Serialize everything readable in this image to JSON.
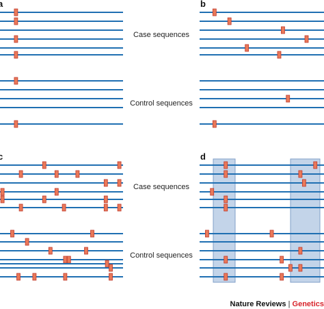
{
  "panels": [
    {
      "label": "a",
      "case_label": "Case sequences",
      "control_label": "Control sequences",
      "case": [
        [
          0.13
        ],
        [
          0.13
        ],
        [],
        [
          0.13
        ],
        [],
        [
          0.13
        ]
      ],
      "control": [
        [
          0.13
        ],
        [],
        [],
        [],
        [
          0.13
        ]
      ],
      "highlight": []
    },
    {
      "label": "b",
      "case_label": "",
      "control_label": "",
      "case": [
        [
          0.12
        ],
        [
          0.24
        ],
        [
          0.67
        ],
        [
          0.86
        ],
        [
          0.38
        ],
        [
          0.64
        ]
      ],
      "control": [
        [],
        [],
        [
          0.71
        ],
        [],
        [
          0.12
        ]
      ],
      "highlight": []
    },
    {
      "label": "c",
      "case_label": "Case sequences",
      "control_label": "Control sequences",
      "case": [
        [
          0.36,
          0.97
        ],
        [
          0.17,
          0.46,
          0.63
        ],
        [
          0.86,
          0.97
        ],
        [
          0.02,
          0.46
        ],
        [
          0.02,
          0.36,
          0.86
        ],
        [
          0.17,
          0.52,
          0.86,
          0.97
        ]
      ],
      "control": [
        [
          0.1,
          0.75
        ],
        [
          0.22
        ],
        [
          0.41,
          0.7
        ],
        [
          0.53,
          0.56
        ],
        [
          0.87
        ],
        [
          0.9
        ],
        [
          0.15,
          0.28,
          0.53,
          0.9
        ]
      ],
      "highlight": []
    },
    {
      "label": "d",
      "case_label": "",
      "control_label": "",
      "case": [
        [
          0.21,
          0.93
        ],
        [
          0.21,
          0.81
        ],
        [
          0.84
        ],
        [
          0.1
        ],
        [
          0.21
        ],
        [
          0.21
        ]
      ],
      "control": [
        [
          0.06,
          0.58
        ],
        [],
        [
          0.81
        ],
        [
          0.21,
          0.66
        ],
        [
          0.73,
          0.81
        ],
        [
          0.21,
          0.66
        ]
      ],
      "highlight": [
        "left",
        "right"
      ]
    }
  ],
  "credit": {
    "publisher": "Nature Reviews",
    "separator": "|",
    "journal": "Genetics"
  },
  "colors": {
    "line": "#1f6fb2",
    "marker_fill": "#e8795a",
    "marker_stroke": "#c0392b",
    "highlight_fill": "#b9cde6",
    "highlight_stroke": "#6d8fbf",
    "journal": "#d8232a"
  }
}
